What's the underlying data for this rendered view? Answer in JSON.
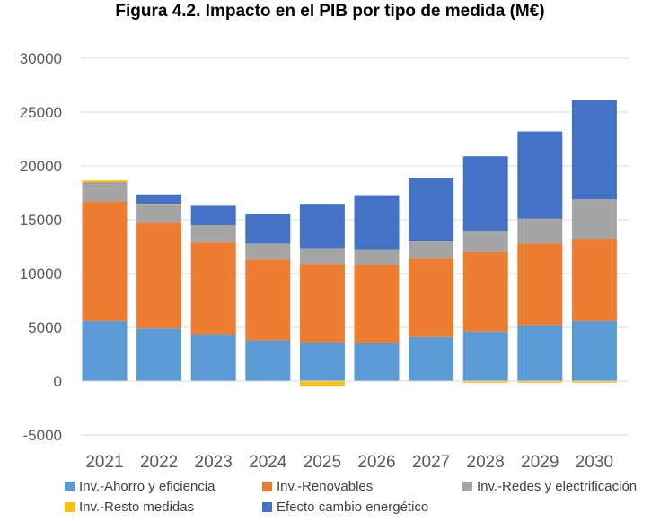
{
  "chart_data": {
    "type": "bar",
    "stacked": true,
    "title": "Figura 4.2. Impacto en el PIB por tipo de medida (M€)",
    "xlabel": "",
    "ylabel": "",
    "categories": [
      "2021",
      "2022",
      "2023",
      "2024",
      "2025",
      "2026",
      "2027",
      "2028",
      "2029",
      "2030"
    ],
    "ylim": [
      -5000,
      30000
    ],
    "yticks": [
      -5000,
      0,
      5000,
      10000,
      15000,
      20000,
      25000,
      30000
    ],
    "ytick_labels": [
      "-5000",
      "0",
      "5000",
      "10000",
      "15000",
      "20000",
      "25000",
      "30000"
    ],
    "grid": true,
    "legend_position": "bottom",
    "series": [
      {
        "name": "Inv.-Ahorro y eficiencia",
        "color": "#5b9bd5",
        "values": [
          5600,
          4900,
          4300,
          3800,
          3600,
          3500,
          4100,
          4600,
          5200,
          5600
        ]
      },
      {
        "name": "Inv.-Renovables",
        "color": "#ed7d31",
        "values": [
          11100,
          9800,
          8600,
          7500,
          7300,
          7300,
          7300,
          7400,
          7600,
          7600
        ]
      },
      {
        "name": "Inv.-Redes y electrificación",
        "color": "#a5a5a5",
        "values": [
          1800,
          1700,
          1600,
          1500,
          1400,
          1400,
          1600,
          1900,
          2300,
          3700
        ]
      },
      {
        "name": "Inv.-Resto medidas",
        "color": "#ffc000",
        "values": [
          150,
          50,
          0,
          0,
          -500,
          0,
          0,
          -150,
          -150,
          -150
        ]
      },
      {
        "name": "Efecto cambio energético",
        "color": "#4472c4",
        "values": [
          0,
          900,
          1800,
          2700,
          4100,
          5000,
          5900,
          7000,
          8100,
          9200
        ]
      }
    ]
  }
}
